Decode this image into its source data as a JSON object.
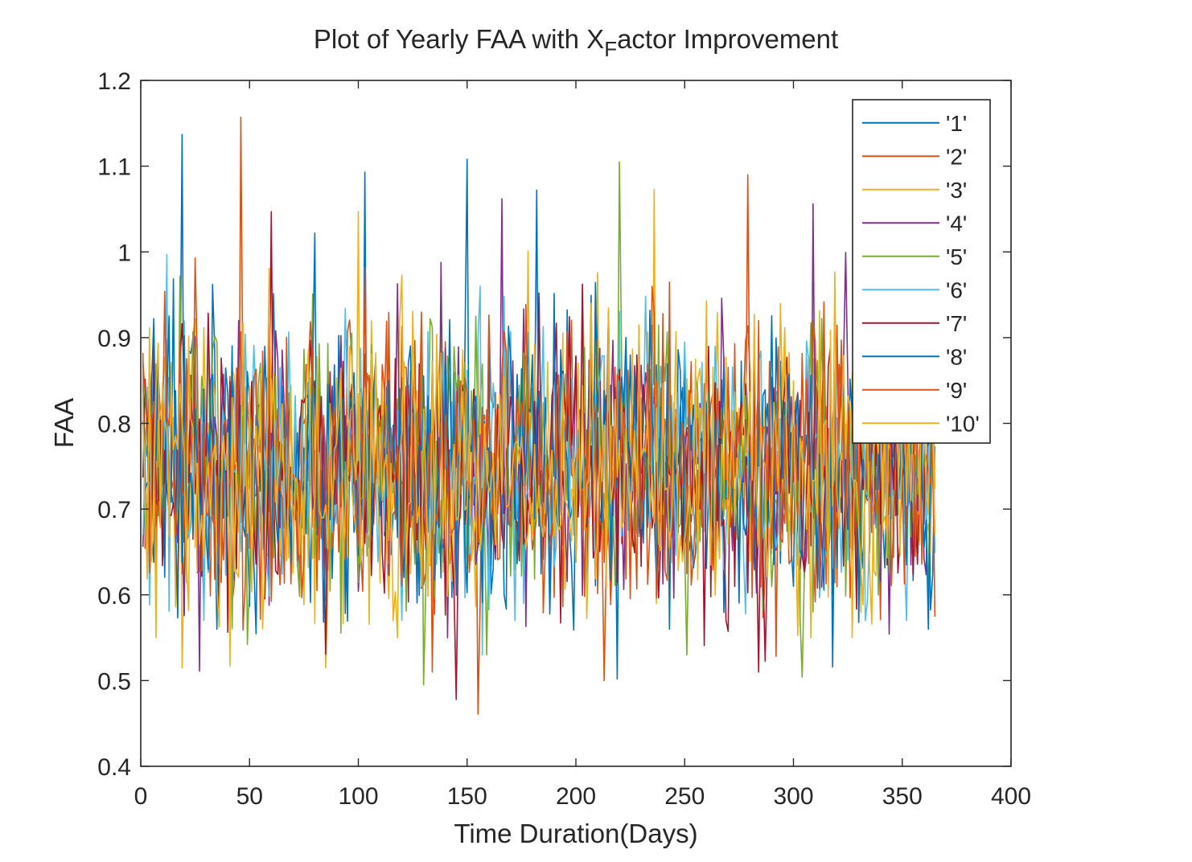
{
  "chart_data": {
    "type": "line",
    "title_parts": [
      "Plot of Yearly FAA with X",
      "F",
      "actor Improvement"
    ],
    "xlabel": "Time Duration(Days)",
    "ylabel": "FAA",
    "xlim": [
      0,
      400
    ],
    "ylim": [
      0.4,
      1.2
    ],
    "xticks": [
      "0",
      "50",
      "100",
      "150",
      "200",
      "250",
      "300",
      "350",
      "400"
    ],
    "yticks": [
      "0.4",
      "0.5",
      "0.6",
      "0.7",
      "0.8",
      "0.9",
      "1",
      "1.1",
      "1.2"
    ],
    "grid": false,
    "legend_position": "top-right",
    "x_range": [
      1,
      365
    ],
    "series": [
      {
        "name": "'1'",
        "color": "#0072BD",
        "mean": 0.75,
        "min": 0.5,
        "max": 1.14,
        "peaks": [
          [
            19,
            1.137
          ],
          [
            103,
            1.093
          ],
          [
            150,
            1.108
          ],
          [
            219,
            0.502
          ],
          [
            182,
            1.072
          ]
        ]
      },
      {
        "name": "'2'",
        "color": "#D95319",
        "mean": 0.75,
        "min": 0.46,
        "max": 1.16,
        "peaks": [
          [
            46,
            1.157
          ],
          [
            155,
            0.461
          ],
          [
            279,
            1.09
          ]
        ]
      },
      {
        "name": "'3'",
        "color": "#EDB120",
        "mean": 0.75,
        "min": 0.51,
        "max": 1.07,
        "peaks": [
          [
            19,
            0.515
          ],
          [
            85,
            0.515
          ],
          [
            236,
            1.073
          ]
        ]
      },
      {
        "name": "'4'",
        "color": "#7E2F8E",
        "mean": 0.75,
        "min": 0.51,
        "max": 1.06,
        "peaks": [
          [
            27,
            0.511
          ],
          [
            166,
            1.062
          ],
          [
            309,
            1.056
          ]
        ]
      },
      {
        "name": "'5'",
        "color": "#77AC30",
        "mean": 0.75,
        "min": 0.49,
        "max": 1.11,
        "peaks": [
          [
            130,
            0.495
          ],
          [
            220,
            1.105
          ],
          [
            304,
            0.504
          ]
        ]
      },
      {
        "name": "'6'",
        "color": "#4DBEEE",
        "mean": 0.75,
        "min": 0.53,
        "max": 1.0,
        "peaks": [
          [
            12,
            0.997
          ],
          [
            157,
            0.53
          ]
        ]
      },
      {
        "name": "'7'",
        "color": "#A2142F",
        "mean": 0.75,
        "min": 0.47,
        "max": 1.05,
        "peaks": [
          [
            60,
            1.047
          ],
          [
            145,
            0.478
          ]
        ]
      },
      {
        "name": "'8'",
        "color": "#0072BD",
        "mean": 0.75,
        "min": 0.52,
        "max": 1.07,
        "peaks": [
          [
            80,
            1.022
          ],
          [
            318,
            0.516
          ]
        ]
      },
      {
        "name": "'9'",
        "color": "#D95319",
        "mean": 0.75,
        "min": 0.51,
        "max": 1.09,
        "peaks": [
          [
            25,
            0.993
          ],
          [
            134,
            0.51
          ]
        ]
      },
      {
        "name": "'10'",
        "color": "#EDB120",
        "mean": 0.75,
        "min": 0.51,
        "max": 1.05,
        "peaks": [
          [
            100,
            1.047
          ],
          [
            41,
            0.517
          ]
        ]
      }
    ]
  }
}
